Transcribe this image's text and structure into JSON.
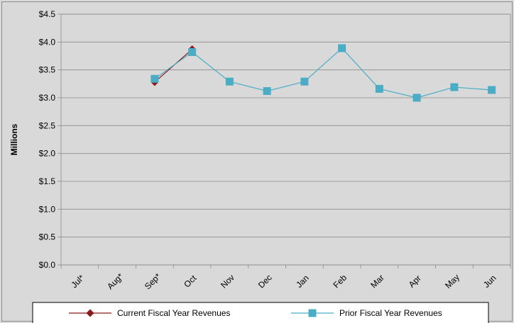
{
  "chart_data": {
    "type": "line",
    "categories": [
      "Jul*",
      "Aug*",
      "Sep*",
      "Oct",
      "Nov",
      "Dec",
      "Jan",
      "Feb",
      "Mar",
      "Apr",
      "May",
      "Jun"
    ],
    "series": [
      {
        "name": "Current Fiscal Year Revenues",
        "color": "#8b1a1a",
        "marker": "diamond",
        "values": [
          null,
          null,
          3.28,
          3.87,
          null,
          null,
          null,
          null,
          null,
          null,
          null,
          null
        ]
      },
      {
        "name": "Prior Fiscal Year Revenues",
        "color": "#4bacc6",
        "marker": "square",
        "values": [
          null,
          null,
          3.34,
          3.82,
          3.29,
          3.12,
          3.29,
          3.89,
          3.16,
          3.0,
          3.19,
          3.14
        ]
      }
    ],
    "yticks": [
      "$0.0",
      "$0.5",
      "$1.0",
      "$1.5",
      "$2.0",
      "$2.5",
      "$3.0",
      "$3.5",
      "$4.0",
      "$4.5"
    ],
    "ylabel": "Millions",
    "xlabel": "",
    "title": "",
    "ylim": [
      0,
      4.5
    ],
    "grid": true,
    "legend_position": "bottom"
  }
}
